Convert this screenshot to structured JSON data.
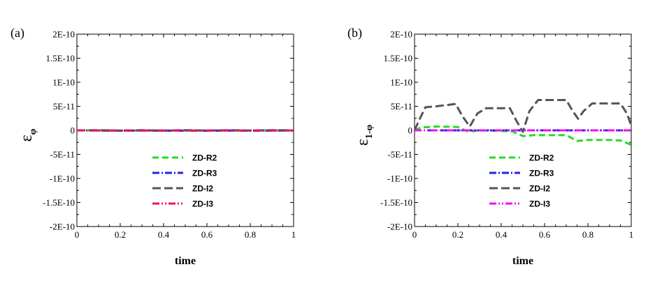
{
  "chart_data": [
    {
      "type": "line",
      "panel_label": "(a)",
      "xlabel": "time",
      "ylabel_symbol": "ε",
      "ylabel_subscript": "φ",
      "xlim": [
        0,
        1
      ],
      "ylim": [
        -2e-10,
        2e-10
      ],
      "x_ticks": [
        "0",
        "0.2",
        "0.4",
        "0.6",
        "0.8",
        "1"
      ],
      "y_ticks": [
        "2E-10",
        "1.5E-10",
        "1E-10",
        "5E-11",
        "0",
        "-5E-11",
        "-1E-10",
        "-1.5E-10",
        "-2E-10"
      ],
      "legend_position": "bottom-center",
      "series": [
        {
          "name": "ZD-R2",
          "color": "#22dd22",
          "dash": "9,5",
          "x": [
            0,
            0.1,
            0.2,
            0.3,
            0.4,
            0.5,
            0.6,
            0.7,
            0.8,
            0.9,
            1.0
          ],
          "y": [
            0,
            -2e-13,
            -3e-13,
            -2e-13,
            -3e-13,
            -2e-13,
            -3e-13,
            -2e-13,
            -3e-13,
            -2e-13,
            -2e-13
          ]
        },
        {
          "name": "ZD-R3",
          "color": "#2222ee",
          "dash": "10,3,2,3",
          "x": [
            0,
            0.1,
            0.2,
            0.3,
            0.4,
            0.5,
            0.6,
            0.7,
            0.8,
            0.9,
            1.0
          ],
          "y": [
            0,
            -5e-13,
            -8e-13,
            -5e-13,
            -8e-13,
            -6e-13,
            -8e-13,
            -5e-13,
            -8e-13,
            -6e-13,
            -5e-13
          ]
        },
        {
          "name": "ZD-I2",
          "color": "#555555",
          "dash": "12,5",
          "x": [
            0,
            0.1,
            0.2,
            0.3,
            0.4,
            0.5,
            0.6,
            0.7,
            0.8,
            0.9,
            1.0
          ],
          "y": [
            0,
            4e-13,
            -4e-13,
            4e-13,
            -4e-13,
            4e-13,
            -4e-13,
            4e-13,
            -4e-13,
            4e-13,
            0
          ]
        },
        {
          "name": "ZD-I3",
          "color": "#ee1166",
          "dash": "10,3,2,3,2,3",
          "x": [
            0,
            0.1,
            0.2,
            0.3,
            0.4,
            0.5,
            0.6,
            0.7,
            0.8,
            0.9,
            1.0
          ],
          "y": [
            0,
            -3e-13,
            -4e-13,
            -3e-13,
            -4e-13,
            -3e-13,
            -4e-13,
            -3e-13,
            -4e-13,
            -3e-13,
            -2e-13
          ]
        }
      ]
    },
    {
      "type": "line",
      "panel_label": "(b)",
      "xlabel": "time",
      "ylabel_symbol": "ε",
      "ylabel_subscript": "1-φ",
      "xlim": [
        0,
        1
      ],
      "ylim": [
        -2e-10,
        2e-10
      ],
      "x_ticks": [
        "0",
        "0.2",
        "0.4",
        "0.6",
        "0.8",
        "1"
      ],
      "y_ticks": [
        "2E-10",
        "1.5E-10",
        "1E-10",
        "5E-11",
        "0",
        "-5E-11",
        "-1E-10",
        "-1.5E-10",
        "-2E-10"
      ],
      "legend_position": "bottom-center",
      "series": [
        {
          "name": "ZD-R2",
          "color": "#22dd22",
          "dash": "9,5",
          "x": [
            0,
            0.03,
            0.1,
            0.2,
            0.25,
            0.3,
            0.45,
            0.5,
            0.55,
            0.7,
            0.75,
            0.8,
            0.9,
            0.95,
            1.0
          ],
          "y": [
            0,
            6e-12,
            8e-12,
            7e-12,
            -3e-12,
            0,
            -2e-12,
            -1.2e-11,
            -1e-11,
            -1e-11,
            -2.2e-11,
            -2e-11,
            -2e-11,
            -2.1e-11,
            -3e-11
          ]
        },
        {
          "name": "ZD-R3",
          "color": "#2222ee",
          "dash": "10,3,2,3",
          "x": [
            0,
            0.2,
            0.4,
            0.6,
            0.8,
            1.0
          ],
          "y": [
            0,
            0,
            0,
            0,
            0,
            0
          ]
        },
        {
          "name": "ZD-I2",
          "color": "#555555",
          "dash": "12,5",
          "x": [
            0,
            0.02,
            0.05,
            0.1,
            0.19,
            0.22,
            0.255,
            0.29,
            0.33,
            0.44,
            0.47,
            0.5,
            0.53,
            0.57,
            0.7,
            0.73,
            0.755,
            0.78,
            0.82,
            0.95,
            0.98,
            1.0
          ],
          "y": [
            0,
            2e-11,
            4.8e-11,
            5e-11,
            5.5e-11,
            3e-11,
            8e-12,
            3.5e-11,
            4.6e-11,
            4.6e-11,
            2e-11,
            -3e-12,
            4e-11,
            6.3e-11,
            6.3e-11,
            4e-11,
            2.4e-11,
            4e-11,
            5.6e-11,
            5.6e-11,
            3.5e-11,
            1e-11
          ]
        },
        {
          "name": "ZD-I3",
          "color": "#ee11ee",
          "dash": "10,3,2,3,2,3",
          "x": [
            0,
            0.2,
            0.4,
            0.6,
            0.8,
            1.0
          ],
          "y": [
            0,
            0,
            0,
            0,
            0,
            0
          ]
        }
      ]
    }
  ]
}
